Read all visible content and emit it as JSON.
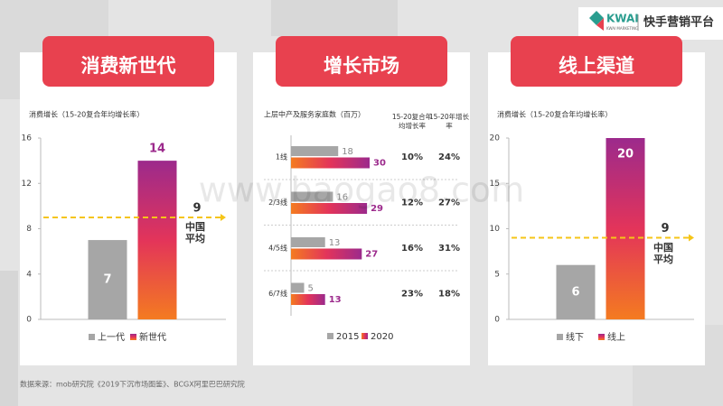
{
  "header": {
    "logo": "KWAI",
    "logo_sub": "KWAI MARKETING",
    "platform": "快手营销平台"
  },
  "watermark": "www.baogao8.com",
  "chart_data": [
    {
      "type": "bar",
      "title": "消费新世代",
      "y_label": "消费增长（15-20复合年均增长率）",
      "categories": [
        "上一代",
        "新世代"
      ],
      "values": [
        7,
        14
      ],
      "colors": [
        "#a6a6a6",
        "#9c2a8c"
      ],
      "ylim": [
        0,
        16
      ],
      "yticks": [
        0,
        4,
        8,
        12,
        16
      ],
      "reference": {
        "value": 9,
        "label": "中国平均",
        "color": "#f5c518"
      },
      "legend": "bottom"
    },
    {
      "type": "barh",
      "title": "增长市场",
      "x_label": "上层中产及服务家庭数（百万）",
      "categories": [
        "1线",
        "2/3线",
        "4/5线",
        "6/7线"
      ],
      "series": [
        {
          "name": "2015",
          "color": "#a6a6a6",
          "values": [
            18,
            16,
            13,
            5
          ]
        },
        {
          "name": "2020",
          "color": "#9c2a8c",
          "values": [
            30,
            29,
            27,
            13
          ]
        }
      ],
      "xlim": [
        0,
        35
      ],
      "table": {
        "columns": [
          {
            "header": "15-20复合年均增长率",
            "values": [
              10,
              12,
              16,
              23
            ],
            "value_labels": [
              "10%",
              "12%",
              "16%",
              "23%"
            ]
          },
          {
            "header": "15-20年增长率",
            "values": [
              24,
              27,
              31,
              18
            ],
            "value_labels": [
              "24%",
              "27%",
              "31%",
              "18%"
            ]
          }
        ]
      },
      "legend": "bottom"
    },
    {
      "type": "bar",
      "title": "线上渠道",
      "y_label": "消费增长（15-20复合年均增长率）",
      "categories": [
        "线下",
        "线上"
      ],
      "values": [
        6,
        20
      ],
      "colors": [
        "#a6a6a6",
        "#9c2a8c"
      ],
      "ylim": [
        0,
        20
      ],
      "yticks": [
        0,
        5,
        10,
        15,
        20
      ],
      "reference": {
        "value": 9,
        "label": "中国平均",
        "color": "#f5c518"
      },
      "legend": "bottom"
    }
  ],
  "source": "数据来源：mob研究院《2019下沉市场图鉴》、BCGX阿里巴巴研究院"
}
